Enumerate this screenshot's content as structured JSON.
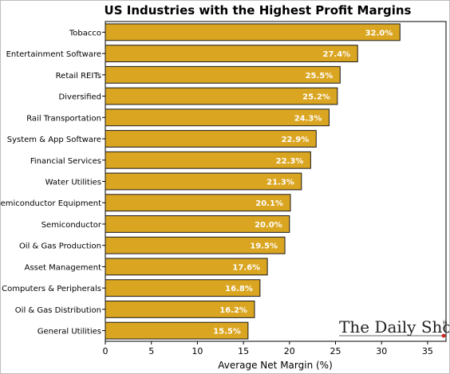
{
  "chart_data": {
    "type": "bar",
    "orientation": "horizontal",
    "title": "US Industries with the Highest Profit Margins",
    "xlabel": "Average Net Margin (%)",
    "ylabel": "",
    "xlim": [
      0,
      37
    ],
    "xticks": [
      0,
      5,
      10,
      15,
      20,
      25,
      30,
      35
    ],
    "categories": [
      "Tobacco",
      "Entertainment Software",
      "Retail REITs",
      "Diversified",
      "Rail Transportation",
      "System & App Software",
      "Financial Services",
      "Water Utilities",
      "Semiconductor Equipment",
      "Semiconductor",
      "Oil & Gas Production",
      "Asset Management",
      "Computers & Peripherals",
      "Oil & Gas Distribution",
      "General Utilities"
    ],
    "values": [
      32.0,
      27.4,
      25.5,
      25.2,
      24.3,
      22.9,
      22.3,
      21.3,
      20.1,
      20.0,
      19.5,
      17.6,
      16.8,
      16.2,
      15.5
    ],
    "value_labels": [
      "32.0%",
      "27.4%",
      "25.5%",
      "25.2%",
      "24.3%",
      "22.9%",
      "22.3%",
      "21.3%",
      "20.1%",
      "20.0%",
      "19.5%",
      "17.6%",
      "16.8%",
      "16.2%",
      "15.5%"
    ],
    "bar_color": "#DAA520",
    "bar_edge_color": "#1a1a1a",
    "label_color": "#ffffff",
    "grid": false,
    "legend": "none"
  },
  "watermark": {
    "text": "The Daily Shot",
    "mark": "®",
    "accent_color": "#cc2222"
  }
}
